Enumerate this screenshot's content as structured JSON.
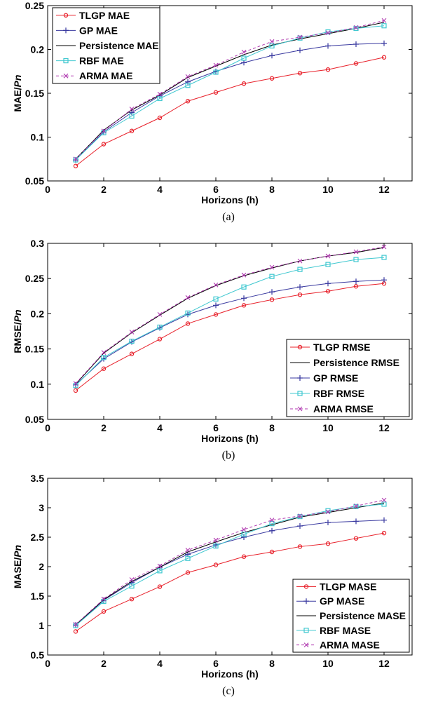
{
  "chart_data": [
    {
      "type": "line",
      "caption": "(a)",
      "xlabel": "Horizons (h)",
      "ylabel_main": "MAE/",
      "ylabel_italic": "Pn",
      "xlim": [
        0,
        13
      ],
      "ylim": [
        0.05,
        0.25
      ],
      "xticks": [
        0,
        2,
        4,
        6,
        8,
        10,
        12
      ],
      "yticks": [
        0.05,
        0.1,
        0.15,
        0.2,
        0.25
      ],
      "yticklabels": [
        "0.05",
        "0.1",
        "0.15",
        "0.2",
        "0.25"
      ],
      "legend_position": "top-left",
      "x": [
        1,
        2,
        3,
        4,
        5,
        6,
        7,
        8,
        9,
        10,
        11,
        12
      ],
      "series": [
        {
          "name": "TLGP MAE",
          "color": "#e8202a",
          "marker": "circle",
          "dash": "",
          "values": [
            0.067,
            0.092,
            0.107,
            0.122,
            0.141,
            0.151,
            0.161,
            0.167,
            0.173,
            0.177,
            0.184,
            0.191
          ]
        },
        {
          "name": "GP MAE",
          "color": "#3a3aa0",
          "marker": "plus",
          "dash": "",
          "values": [
            0.074,
            0.106,
            0.128,
            0.147,
            0.163,
            0.175,
            0.185,
            0.193,
            0.199,
            0.204,
            0.206,
            0.207
          ]
        },
        {
          "name": "Persistence MAE",
          "color": "#000000",
          "marker": "none",
          "dash": "",
          "values": [
            0.075,
            0.108,
            0.131,
            0.148,
            0.168,
            0.181,
            0.194,
            0.205,
            0.212,
            0.218,
            0.224,
            0.231
          ]
        },
        {
          "name": "RBF MAE",
          "color": "#40c8d0",
          "marker": "square",
          "dash": "",
          "values": [
            0.074,
            0.105,
            0.124,
            0.144,
            0.159,
            0.174,
            0.19,
            0.204,
            0.213,
            0.22,
            0.224,
            0.227
          ]
        },
        {
          "name": "ARMA MAE",
          "color": "#b03ab0",
          "marker": "x",
          "dash": "4,3",
          "values": [
            0.075,
            0.107,
            0.132,
            0.149,
            0.169,
            0.182,
            0.197,
            0.209,
            0.214,
            0.219,
            0.225,
            0.233
          ]
        }
      ]
    },
    {
      "type": "line",
      "caption": "(b)",
      "xlabel": "Horizons (h)",
      "ylabel_main": "RMSE/",
      "ylabel_italic": "Pn",
      "xlim": [
        0,
        13
      ],
      "ylim": [
        0.05,
        0.3
      ],
      "xticks": [
        0,
        2,
        4,
        6,
        8,
        10,
        12
      ],
      "yticks": [
        0.05,
        0.1,
        0.15,
        0.2,
        0.25,
        0.3
      ],
      "yticklabels": [
        "0.05",
        "0.1",
        "0.15",
        "0.2",
        "0.25",
        "0.3"
      ],
      "legend_position": "bottom-right",
      "x": [
        1,
        2,
        3,
        4,
        5,
        6,
        7,
        8,
        9,
        10,
        11,
        12
      ],
      "series": [
        {
          "name": "TLGP RMSE",
          "color": "#e8202a",
          "marker": "circle",
          "dash": "",
          "values": [
            0.091,
            0.122,
            0.143,
            0.164,
            0.186,
            0.199,
            0.212,
            0.22,
            0.227,
            0.232,
            0.239,
            0.243
          ]
        },
        {
          "name": "Persistence RMSE",
          "color": "#000000",
          "marker": "none",
          "dash": "",
          "values": [
            0.1,
            0.144,
            0.173,
            0.198,
            0.222,
            0.24,
            0.254,
            0.265,
            0.275,
            0.282,
            0.287,
            0.294
          ]
        },
        {
          "name": "GP RMSE",
          "color": "#3a3aa0",
          "marker": "plus",
          "dash": "",
          "values": [
            0.099,
            0.136,
            0.16,
            0.18,
            0.199,
            0.212,
            0.222,
            0.231,
            0.238,
            0.243,
            0.246,
            0.248
          ]
        },
        {
          "name": "RBF RMSE",
          "color": "#40c8d0",
          "marker": "square",
          "dash": "",
          "values": [
            0.098,
            0.138,
            0.161,
            0.181,
            0.201,
            0.221,
            0.238,
            0.253,
            0.263,
            0.27,
            0.277,
            0.28
          ]
        },
        {
          "name": "ARMA RMSE",
          "color": "#b03ab0",
          "marker": "x",
          "dash": "4,3",
          "values": [
            0.101,
            0.145,
            0.174,
            0.199,
            0.223,
            0.241,
            0.255,
            0.266,
            0.275,
            0.282,
            0.288,
            0.295
          ]
        }
      ]
    },
    {
      "type": "line",
      "caption": "(c)",
      "xlabel": "Horizons (h)",
      "ylabel_main": "MASE/",
      "ylabel_italic": "Pn",
      "xlim": [
        0,
        13
      ],
      "ylim": [
        0.5,
        3.5
      ],
      "xticks": [
        0,
        2,
        4,
        6,
        8,
        10,
        12
      ],
      "yticks": [
        0.5,
        1,
        1.5,
        2,
        2.5,
        3,
        3.5
      ],
      "yticklabels": [
        "0.5",
        "1",
        "1.5",
        "2",
        "2.5",
        "3",
        "3.5"
      ],
      "legend_position": "bottom-right",
      "x": [
        1,
        2,
        3,
        4,
        5,
        6,
        7,
        8,
        9,
        10,
        11,
        12
      ],
      "series": [
        {
          "name": "TLGP MASE",
          "color": "#e8202a",
          "marker": "circle",
          "dash": "",
          "values": [
            0.9,
            1.24,
            1.45,
            1.66,
            1.9,
            2.03,
            2.17,
            2.25,
            2.34,
            2.39,
            2.48,
            2.57
          ]
        },
        {
          "name": "GP MASE",
          "color": "#3a3aa0",
          "marker": "plus",
          "dash": "",
          "values": [
            1.01,
            1.43,
            1.73,
            1.99,
            2.21,
            2.37,
            2.5,
            2.61,
            2.69,
            2.75,
            2.77,
            2.79
          ]
        },
        {
          "name": "Persistence MASE",
          "color": "#000000",
          "marker": "none",
          "dash": "",
          "values": [
            1.01,
            1.44,
            1.75,
            1.99,
            2.25,
            2.42,
            2.58,
            2.71,
            2.84,
            2.92,
            3.0,
            3.08
          ]
        },
        {
          "name": "RBF MASE",
          "color": "#40c8d0",
          "marker": "square",
          "dash": "",
          "values": [
            1.0,
            1.41,
            1.67,
            1.93,
            2.14,
            2.35,
            2.55,
            2.73,
            2.85,
            2.95,
            3.02,
            3.06
          ]
        },
        {
          "name": "ARMA MASE",
          "color": "#b03ab0",
          "marker": "x",
          "dash": "4,3",
          "values": [
            1.02,
            1.45,
            1.78,
            2.01,
            2.28,
            2.45,
            2.63,
            2.79,
            2.86,
            2.93,
            3.03,
            3.13
          ]
        }
      ]
    }
  ]
}
